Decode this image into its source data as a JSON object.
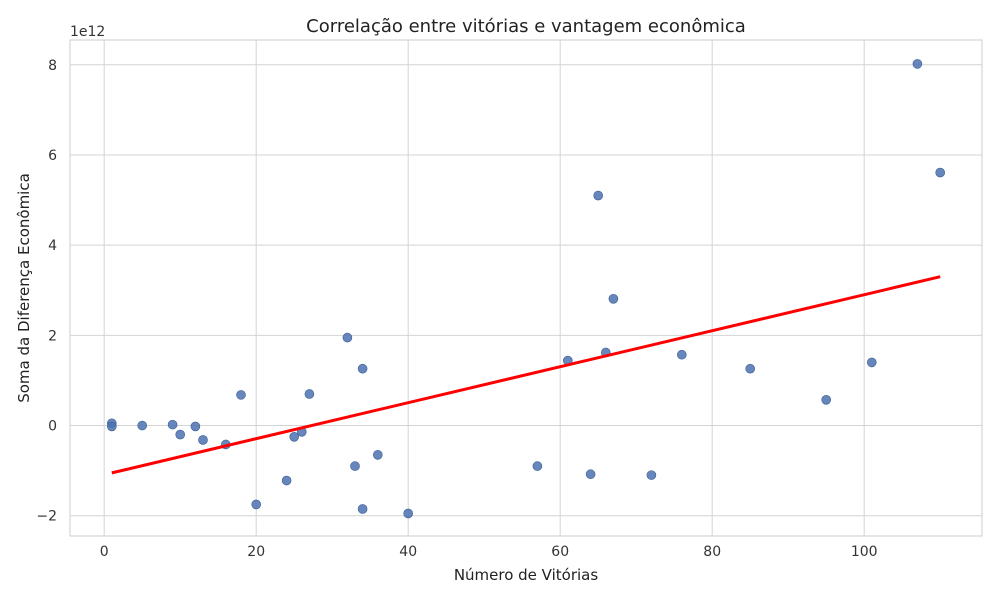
{
  "chart_data": {
    "type": "scatter",
    "title": "Correlação entre vitórias e vantagem econômica",
    "xlabel": "Número de Vitórias",
    "ylabel": "Soma da Diferença Econômica",
    "y_offset_label": "1e12",
    "xlim": [
      -4.5,
      115.5
    ],
    "ylim": [
      -2.45,
      8.55
    ],
    "x_ticks": [
      0,
      20,
      40,
      60,
      80,
      100
    ],
    "x_tick_labels": [
      "0",
      "20",
      "40",
      "60",
      "80",
      "100"
    ],
    "y_ticks": [
      -2,
      0,
      2,
      4,
      6,
      8
    ],
    "y_tick_labels": [
      "−2",
      "0",
      "2",
      "4",
      "6",
      "8"
    ],
    "grid": true,
    "point_color": "#4c72b0",
    "line_color": "#ff0000",
    "points": [
      {
        "x": 1,
        "y": 0.05
      },
      {
        "x": 1,
        "y": -0.02
      },
      {
        "x": 5,
        "y": 0.0
      },
      {
        "x": 9,
        "y": 0.02
      },
      {
        "x": 10,
        "y": -0.2
      },
      {
        "x": 12,
        "y": -0.02
      },
      {
        "x": 13,
        "y": -0.32
      },
      {
        "x": 16,
        "y": -0.42
      },
      {
        "x": 18,
        "y": 0.68
      },
      {
        "x": 20,
        "y": -1.75
      },
      {
        "x": 24,
        "y": -1.22
      },
      {
        "x": 25,
        "y": -0.25
      },
      {
        "x": 26,
        "y": -0.14
      },
      {
        "x": 27,
        "y": 0.7
      },
      {
        "x": 32,
        "y": 1.95
      },
      {
        "x": 33,
        "y": -0.9
      },
      {
        "x": 34,
        "y": 1.26
      },
      {
        "x": 34,
        "y": -1.85
      },
      {
        "x": 36,
        "y": -0.65
      },
      {
        "x": 40,
        "y": -1.95
      },
      {
        "x": 57,
        "y": -0.9
      },
      {
        "x": 61,
        "y": 1.44
      },
      {
        "x": 64,
        "y": -1.08
      },
      {
        "x": 65,
        "y": 5.1
      },
      {
        "x": 66,
        "y": 1.62
      },
      {
        "x": 67,
        "y": 2.81
      },
      {
        "x": 72,
        "y": -1.1
      },
      {
        "x": 76,
        "y": 1.57
      },
      {
        "x": 85,
        "y": 1.26
      },
      {
        "x": 95,
        "y": 0.57
      },
      {
        "x": 101,
        "y": 1.4
      },
      {
        "x": 107,
        "y": 8.02
      },
      {
        "x": 110,
        "y": 5.61
      }
    ],
    "regression": {
      "x": [
        1,
        110
      ],
      "y": [
        -1.05,
        3.3
      ]
    }
  }
}
